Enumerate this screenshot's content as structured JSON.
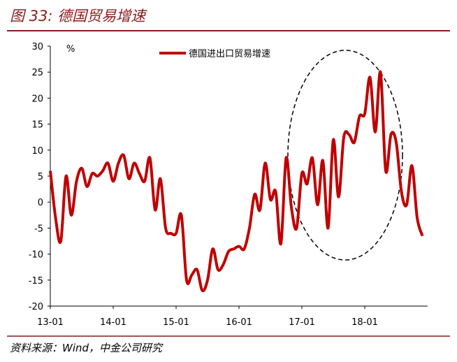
{
  "chart_data": {
    "type": "line",
    "title": "图 33: 德国贸易增速",
    "source": "资料来源：Wind，中金公司研究",
    "unit": "%",
    "categories": [
      "13-01",
      null,
      null,
      null,
      null,
      null,
      null,
      null,
      null,
      null,
      null,
      null,
      "14-01",
      null,
      null,
      null,
      null,
      null,
      null,
      null,
      null,
      null,
      null,
      null,
      "15-01",
      null,
      null,
      null,
      null,
      null,
      null,
      null,
      null,
      null,
      null,
      null,
      "16-01",
      null,
      null,
      null,
      null,
      null,
      null,
      null,
      null,
      null,
      null,
      null,
      "17-01",
      null,
      null,
      null,
      null,
      null,
      null,
      null,
      null,
      null,
      null,
      null,
      "18-01",
      null,
      null,
      null,
      null,
      null,
      null,
      null,
      null,
      null,
      null,
      null
    ],
    "series": [
      {
        "name": "德国进出口贸易增速",
        "color": "#c00000",
        "values": [
          6,
          -3,
          -7.5,
          5,
          -2.5,
          4,
          6.5,
          3,
          5.5,
          5,
          6,
          7.5,
          4,
          7.5,
          9,
          4.5,
          7.5,
          5.5,
          4,
          8.5,
          -1.5,
          4.5,
          -5,
          -6,
          -6,
          -2.5,
          -15,
          -14,
          -13,
          -17,
          -15,
          -9,
          -13,
          -12,
          -9.5,
          -9,
          -8.5,
          -9,
          -5,
          1.5,
          -1.5,
          7.5,
          0.5,
          2,
          -8,
          8.5,
          -1,
          -5,
          5.5,
          3.5,
          8.5,
          -0.5,
          8,
          -5,
          12,
          1,
          12.5,
          13,
          11.5,
          16.5,
          17,
          24,
          13.5,
          25,
          6,
          13,
          11.5,
          2,
          -0.5,
          7,
          -3,
          -6.5
        ]
      }
    ],
    "ylim": [
      -20,
      30
    ],
    "yticks": [
      -20,
      -15,
      -10,
      -5,
      0,
      5,
      10,
      15,
      20,
      25,
      30
    ],
    "legend": "top"
  }
}
